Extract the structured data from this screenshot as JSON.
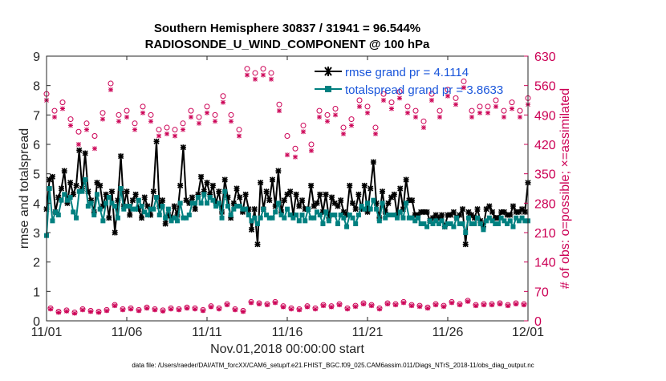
{
  "chart_data": {
    "type": "line",
    "title": "Southern Hemisphere 30837 / 31941 = 96.544%",
    "subtitle": "RADIOSONDE_U_WIND_COMPONENT @ 100 hPa",
    "xlabel": "Nov.01,2018 00:00:00 start",
    "ylabel": "rmse and totalspread",
    "ylabel_right": "# of obs: o=possible; ×=assimilated",
    "footnote": "data file: /Users/raeder/DAI/ATM_forcXX/CAM6_setup/f.e21.FHIST_BGC.f09_025.CAM6assim.011/Diags_NTrS_2018-11/obs_diag_output.nc",
    "xlim": [
      0,
      30
    ],
    "ylim": [
      0,
      9
    ],
    "ylim_right": [
      0,
      630
    ],
    "x_ticks": [
      0,
      5,
      10,
      15,
      20,
      25,
      30
    ],
    "x_tick_labels": [
      "11/01",
      "11/06",
      "11/11",
      "11/16",
      "11/21",
      "11/26",
      "12/01"
    ],
    "y_ticks": [
      0,
      1,
      2,
      3,
      4,
      5,
      6,
      7,
      8,
      9
    ],
    "y_tick_labels": [
      "0",
      "1",
      "2",
      "3",
      "4",
      "5",
      "6",
      "7",
      "8",
      "9"
    ],
    "y_right_ticks": [
      0,
      70,
      140,
      210,
      280,
      350,
      420,
      490,
      560,
      630
    ],
    "y_right_tick_labels": [
      "0",
      "70",
      "140",
      "210",
      "280",
      "350",
      "420",
      "490",
      "560",
      "630"
    ],
    "legend": {
      "location": "top-right",
      "entries": [
        "rmse grand pr = 4.1114",
        "totalspread grand pr = 3.8633"
      ]
    },
    "colors": {
      "rmse": "#000000",
      "spread": "#008080",
      "obs": "#cc0055",
      "legend_text": "#1a56db"
    },
    "series": [
      {
        "name": "rmse grand pr = 4.1114",
        "values": [
          3.8,
          4.8,
          4.9,
          3.7,
          4.2,
          4.5,
          5.1,
          4.0,
          4.7,
          4.3,
          4.6,
          5.8,
          4.5,
          5.7,
          4.4,
          4.1,
          3.7,
          4.7,
          4.6,
          3.9,
          4.3,
          3.5,
          4.4,
          3.0,
          4.1,
          5.6,
          3.9,
          4.4,
          3.6,
          4.1,
          4.3,
          3.8,
          3.5,
          4.2,
          3.9,
          3.6,
          4.4,
          6.1,
          3.9,
          4.1,
          3.3,
          3.6,
          3.5,
          3.9,
          3.6,
          4.6,
          5.9,
          4.1,
          4.0,
          4.2,
          3.8,
          4.3,
          4.9,
          4.4,
          4.7,
          4.3,
          4.6,
          4.0,
          4.4,
          3.7,
          4.8,
          4.2,
          3.5,
          4.0,
          4.5,
          4.2,
          3.7,
          4.3,
          3.8,
          3.1,
          3.8,
          2.6,
          4.7,
          3.8,
          4.4,
          4.1,
          4.8,
          3.9,
          5.1,
          3.7,
          4.1,
          4.3,
          4.4,
          3.6,
          4.3,
          3.9,
          4.1,
          3.8,
          3.8,
          4.6,
          3.9,
          4.0,
          4.3,
          3.7,
          4.3,
          3.5,
          4.2,
          4.0,
          3.9,
          4.1,
          3.7,
          3.6,
          4.6,
          4.0,
          3.8,
          4.3,
          3.8,
          4.6,
          3.7,
          4.5,
          5.4,
          4.0,
          3.5,
          4.4,
          3.7,
          4.0,
          4.2,
          4.3,
          3.6,
          4.5,
          3.8,
          4.8,
          4.1,
          4.1,
          3.6,
          3.6,
          3.7,
          3.7,
          3.7,
          3.4,
          3.5,
          3.6,
          3.5,
          3.6,
          3.2,
          3.6,
          3.6,
          3.7,
          3.5,
          3.6,
          3.8,
          2.6,
          3.7,
          3.6,
          3.5,
          3.8,
          3.4,
          3.2,
          3.8,
          3.9,
          3.7,
          3.5,
          3.5,
          3.7,
          3.7,
          3.6,
          3.6,
          3.9,
          3.7,
          3.7,
          3.8,
          3.7,
          4.7
        ]
      },
      {
        "name": "totalspread grand pr = 3.8633",
        "values": [
          2.9,
          4.5,
          3.4,
          3.7,
          3.6,
          4.1,
          4.3,
          4.1,
          4.2,
          3.7,
          3.5,
          4.4,
          4.4,
          4.8,
          3.9,
          4.0,
          3.6,
          4.3,
          3.8,
          3.4,
          4.0,
          4.2,
          4.0,
          3.9,
          3.5,
          4.5,
          3.8,
          3.9,
          3.9,
          3.8,
          3.8,
          4.1,
          3.9,
          3.7,
          3.6,
          3.8,
          3.8,
          4.2,
          3.6,
          3.9,
          3.5,
          3.8,
          3.4,
          3.5,
          3.4,
          4.0,
          3.5,
          3.5,
          3.6,
          4.0,
          4.0,
          4.2,
          4.0,
          4.3,
          4.0,
          4.2,
          4.1,
          3.9,
          4.0,
          3.5,
          4.4,
          3.9,
          3.6,
          3.8,
          3.9,
          3.9,
          3.8,
          3.8,
          3.6,
          3.4,
          3.5,
          3.3,
          3.5,
          3.8,
          3.6,
          3.5,
          3.5,
          3.7,
          4.0,
          3.6,
          3.5,
          3.8,
          3.6,
          3.5,
          3.6,
          3.4,
          3.6,
          3.4,
          3.8,
          3.5,
          3.5,
          3.7,
          3.6,
          3.3,
          3.7,
          3.4,
          3.6,
          3.6,
          3.3,
          3.6,
          3.5,
          3.2,
          3.6,
          3.5,
          3.3,
          3.6,
          3.9,
          3.8,
          4.0,
          3.8,
          4.1,
          3.8,
          3.4,
          4.0,
          3.5,
          3.6,
          3.6,
          3.6,
          3.5,
          3.7,
          3.5,
          4.0,
          3.5,
          3.5,
          3.4,
          3.5,
          3.3,
          3.3,
          3.2,
          3.4,
          3.3,
          3.4,
          3.3,
          3.4,
          3.2,
          3.3,
          3.3,
          3.2,
          3.5,
          3.3,
          3.3,
          3.0,
          3.5,
          3.3,
          3.3,
          3.5,
          3.3,
          3.1,
          3.4,
          3.5,
          3.4,
          3.3,
          3.3,
          3.5,
          3.4,
          3.3,
          3.4,
          3.2,
          3.5,
          3.4,
          3.5,
          3.4,
          3.4
        ]
      },
      {
        "name": "obs possible 00Z",
        "axis": "right",
        "x": [
          0.0,
          0.5,
          1.0,
          1.5,
          2.0,
          2.5,
          3.0,
          3.5,
          4.0,
          4.5,
          5.0,
          5.5,
          6.0,
          6.5,
          7.0,
          7.5,
          8.0,
          8.5,
          9.0,
          9.5,
          10.0,
          10.5,
          11.0,
          11.5,
          12.0,
          12.5,
          13.0,
          13.5,
          14.0,
          14.5,
          15.0,
          15.5,
          16.0,
          16.5,
          17.0,
          17.5,
          18.0,
          18.5,
          19.0,
          19.5,
          20.0,
          20.5,
          21.0,
          21.5,
          22.0,
          22.5,
          23.0,
          23.5,
          24.0,
          24.5,
          25.0,
          25.5,
          26.0,
          26.5,
          27.0,
          27.5,
          28.0,
          28.5,
          29.0,
          29.5,
          30.0
        ],
        "values": [
          540,
          500,
          520,
          480,
          450,
          470,
          440,
          495,
          565,
          490,
          500,
          470,
          510,
          490,
          455,
          460,
          455,
          470,
          500,
          485,
          510,
          490,
          535,
          490,
          455,
          600,
          590,
          600,
          590,
          515,
          440,
          410,
          465,
          420,
          500,
          490,
          505,
          460,
          480,
          525,
          510,
          460,
          540,
          520,
          545,
          510,
          500,
          475,
          540,
          500,
          550,
          530,
          570,
          500,
          510,
          510,
          525,
          500,
          520,
          500,
          530
        ]
      },
      {
        "name": "obs assimilated 00Z",
        "axis": "right",
        "x": [
          0.0,
          0.5,
          1.0,
          1.5,
          2.0,
          2.5,
          3.0,
          3.5,
          4.0,
          4.5,
          5.0,
          5.5,
          6.0,
          6.5,
          7.0,
          7.5,
          8.0,
          8.5,
          9.0,
          9.5,
          10.0,
          10.5,
          11.0,
          11.5,
          12.0,
          12.5,
          13.0,
          13.5,
          14.0,
          14.5,
          15.0,
          15.5,
          16.0,
          16.5,
          17.0,
          17.5,
          18.0,
          18.5,
          19.0,
          19.5,
          20.0,
          20.5,
          21.0,
          21.5,
          22.0,
          22.5,
          23.0,
          23.5,
          24.0,
          24.5,
          25.0,
          25.5,
          26.0,
          26.5,
          27.0,
          27.5,
          28.0,
          28.5,
          29.0,
          29.5,
          30.0
        ],
        "values": [
          525,
          485,
          505,
          465,
          420,
          455,
          410,
          480,
          550,
          475,
          485,
          455,
          495,
          475,
          440,
          445,
          440,
          455,
          485,
          470,
          495,
          475,
          520,
          475,
          440,
          585,
          575,
          585,
          575,
          500,
          395,
          390,
          450,
          405,
          485,
          475,
          490,
          445,
          465,
          510,
          495,
          445,
          525,
          505,
          530,
          495,
          485,
          460,
          525,
          485,
          535,
          515,
          555,
          485,
          495,
          495,
          510,
          485,
          505,
          485,
          515
        ]
      },
      {
        "name": "obs possible 12Z",
        "axis": "right",
        "x": [
          0.25,
          0.75,
          1.25,
          1.75,
          2.25,
          2.75,
          3.25,
          3.75,
          4.25,
          4.75,
          5.25,
          5.75,
          6.25,
          6.75,
          7.25,
          7.75,
          8.25,
          8.75,
          9.25,
          9.75,
          10.25,
          10.75,
          11.25,
          11.75,
          12.25,
          12.75,
          13.25,
          13.75,
          14.25,
          14.75,
          15.25,
          15.75,
          16.25,
          16.75,
          17.25,
          17.75,
          18.25,
          18.75,
          19.25,
          19.75,
          20.25,
          20.75,
          21.25,
          21.75,
          22.25,
          22.75,
          23.25,
          23.75,
          24.25,
          24.75,
          25.25,
          25.75,
          26.25,
          26.75,
          27.25,
          27.75,
          28.25,
          28.75,
          29.25,
          29.75
        ],
        "values": [
          30,
          22,
          25,
          20,
          28,
          24,
          22,
          26,
          38,
          28,
          30,
          26,
          32,
          28,
          25,
          30,
          28,
          32,
          30,
          26,
          35,
          30,
          40,
          28,
          24,
          45,
          42,
          40,
          45,
          35,
          30,
          28,
          35,
          30,
          38,
          35,
          40,
          30,
          36,
          42,
          38,
          30,
          42,
          40,
          45,
          38,
          36,
          32,
          40,
          36,
          45,
          40,
          48,
          38,
          40,
          40,
          42,
          38,
          42,
          40
        ]
      },
      {
        "name": "obs assimilated 12Z",
        "axis": "right",
        "x": [
          0.25,
          0.75,
          1.25,
          1.75,
          2.25,
          2.75,
          3.25,
          3.75,
          4.25,
          4.75,
          5.25,
          5.75,
          6.25,
          6.75,
          7.25,
          7.75,
          8.25,
          8.75,
          9.25,
          9.75,
          10.25,
          10.75,
          11.25,
          11.75,
          12.25,
          12.75,
          13.25,
          13.75,
          14.25,
          14.75,
          15.25,
          15.75,
          16.25,
          16.75,
          17.25,
          17.75,
          18.25,
          18.75,
          19.25,
          19.75,
          20.25,
          20.75,
          21.25,
          21.75,
          22.25,
          22.75,
          23.25,
          23.75,
          24.25,
          24.75,
          25.25,
          25.75,
          26.25,
          26.75,
          27.25,
          27.75,
          28.25,
          28.75,
          29.25,
          29.75
        ],
        "values": [
          28,
          20,
          23,
          18,
          26,
          22,
          20,
          24,
          36,
          26,
          28,
          24,
          30,
          26,
          23,
          28,
          26,
          30,
          28,
          24,
          33,
          28,
          38,
          26,
          22,
          43,
          40,
          38,
          43,
          33,
          28,
          26,
          33,
          28,
          36,
          33,
          38,
          28,
          34,
          40,
          36,
          28,
          40,
          38,
          43,
          36,
          34,
          30,
          38,
          34,
          43,
          38,
          46,
          36,
          38,
          38,
          40,
          36,
          40,
          38
        ]
      }
    ]
  }
}
